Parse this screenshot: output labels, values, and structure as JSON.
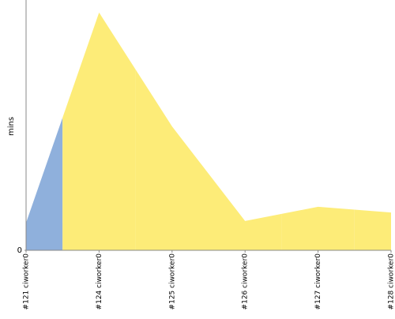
{
  "chart_data": {
    "type": "area",
    "ylabel": "mins",
    "categories": [
      "#121 ciworker0",
      "#124 ciworker0",
      "#125 ciworker0",
      "#126 ciworker0",
      "#127 ciworker0",
      "#128 ciworker0"
    ],
    "series": [
      {
        "color": "#8fb0dc",
        "values": [
          1.1,
          null,
          null,
          null,
          null,
          null
        ]
      },
      {
        "color": "#fdec78",
        "values": [
          null,
          9.5,
          4.95,
          1.17,
          1.74,
          1.51
        ]
      }
    ],
    "ylim": [
      0,
      10
    ],
    "yticks": [
      0
    ]
  }
}
